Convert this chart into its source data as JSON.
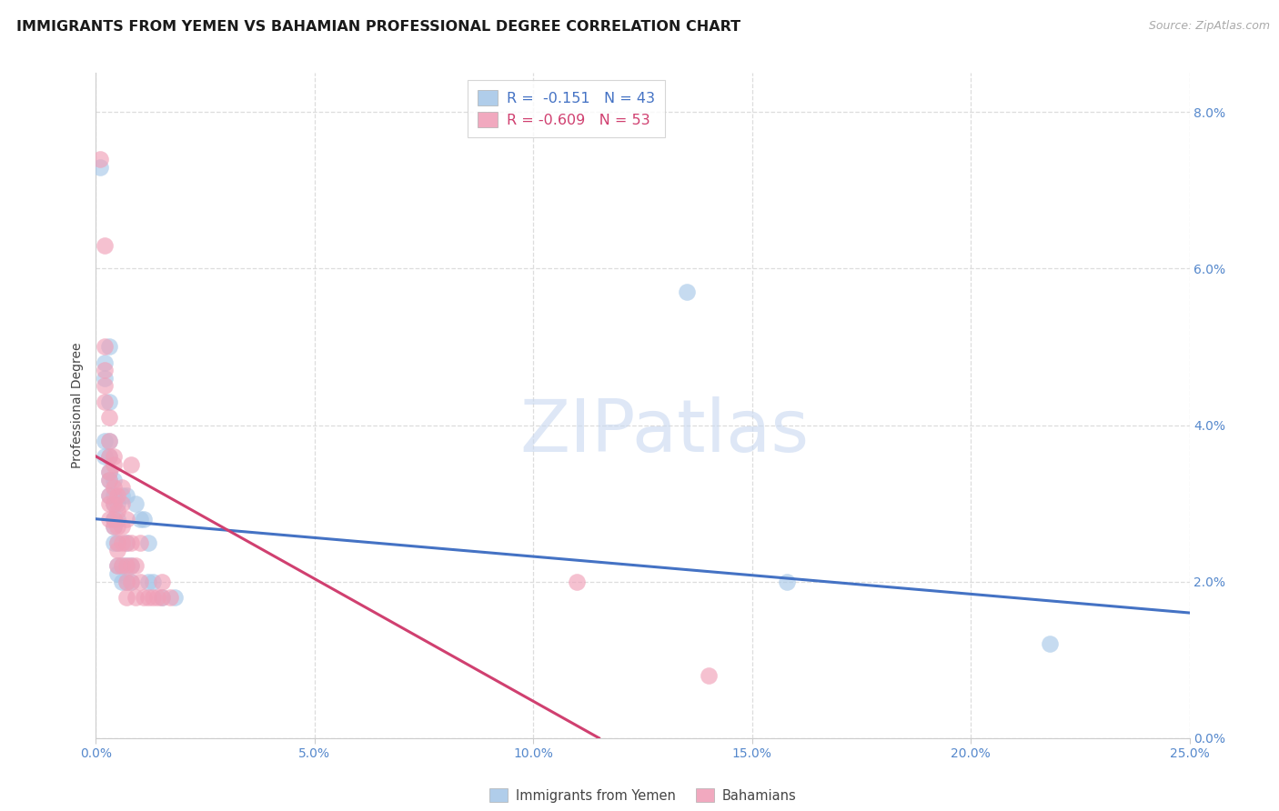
{
  "title": "IMMIGRANTS FROM YEMEN VS BAHAMIAN PROFESSIONAL DEGREE CORRELATION CHART",
  "source": "Source: ZipAtlas.com",
  "ylabel": "Professional Degree",
  "xmin": 0.0,
  "xmax": 0.25,
  "ymin": 0.0,
  "ymax": 0.085,
  "yticks": [
    0.0,
    0.02,
    0.04,
    0.06,
    0.08
  ],
  "xticks": [
    0.0,
    0.05,
    0.1,
    0.15,
    0.2,
    0.25
  ],
  "blue_color": "#A8C8E8",
  "pink_color": "#F0A0B8",
  "blue_line_color": "#4472C4",
  "pink_line_color": "#D04070",
  "series1_label": "Immigrants from Yemen",
  "series2_label": "Bahamians",
  "blue_R": "R =  -0.151",
  "blue_N": "N = 43",
  "pink_R": "R = -0.609",
  "pink_N": "N = 53",
  "blue_points": [
    [
      0.001,
      0.073
    ],
    [
      0.002,
      0.048
    ],
    [
      0.002,
      0.046
    ],
    [
      0.002,
      0.038
    ],
    [
      0.002,
      0.036
    ],
    [
      0.003,
      0.05
    ],
    [
      0.003,
      0.043
    ],
    [
      0.003,
      0.038
    ],
    [
      0.003,
      0.036
    ],
    [
      0.003,
      0.034
    ],
    [
      0.003,
      0.033
    ],
    [
      0.003,
      0.031
    ],
    [
      0.004,
      0.033
    ],
    [
      0.004,
      0.031
    ],
    [
      0.004,
      0.03
    ],
    [
      0.004,
      0.028
    ],
    [
      0.004,
      0.027
    ],
    [
      0.004,
      0.025
    ],
    [
      0.005,
      0.03
    ],
    [
      0.005,
      0.028
    ],
    [
      0.005,
      0.025
    ],
    [
      0.005,
      0.022
    ],
    [
      0.005,
      0.021
    ],
    [
      0.006,
      0.031
    ],
    [
      0.006,
      0.022
    ],
    [
      0.006,
      0.02
    ],
    [
      0.007,
      0.031
    ],
    [
      0.007,
      0.025
    ],
    [
      0.007,
      0.022
    ],
    [
      0.007,
      0.02
    ],
    [
      0.008,
      0.022
    ],
    [
      0.008,
      0.02
    ],
    [
      0.009,
      0.03
    ],
    [
      0.01,
      0.028
    ],
    [
      0.011,
      0.028
    ],
    [
      0.012,
      0.025
    ],
    [
      0.012,
      0.02
    ],
    [
      0.013,
      0.02
    ],
    [
      0.015,
      0.018
    ],
    [
      0.018,
      0.018
    ],
    [
      0.135,
      0.057
    ],
    [
      0.158,
      0.02
    ],
    [
      0.218,
      0.012
    ]
  ],
  "pink_points": [
    [
      0.001,
      0.074
    ],
    [
      0.002,
      0.063
    ],
    [
      0.002,
      0.05
    ],
    [
      0.002,
      0.047
    ],
    [
      0.002,
      0.045
    ],
    [
      0.002,
      0.043
    ],
    [
      0.003,
      0.041
    ],
    [
      0.003,
      0.038
    ],
    [
      0.003,
      0.036
    ],
    [
      0.003,
      0.034
    ],
    [
      0.003,
      0.033
    ],
    [
      0.003,
      0.031
    ],
    [
      0.003,
      0.03
    ],
    [
      0.003,
      0.028
    ],
    [
      0.004,
      0.036
    ],
    [
      0.004,
      0.035
    ],
    [
      0.004,
      0.032
    ],
    [
      0.004,
      0.03
    ],
    [
      0.004,
      0.028
    ],
    [
      0.004,
      0.027
    ],
    [
      0.005,
      0.031
    ],
    [
      0.005,
      0.029
    ],
    [
      0.005,
      0.027
    ],
    [
      0.005,
      0.025
    ],
    [
      0.005,
      0.024
    ],
    [
      0.005,
      0.022
    ],
    [
      0.006,
      0.032
    ],
    [
      0.006,
      0.03
    ],
    [
      0.006,
      0.027
    ],
    [
      0.006,
      0.025
    ],
    [
      0.006,
      0.022
    ],
    [
      0.007,
      0.028
    ],
    [
      0.007,
      0.025
    ],
    [
      0.007,
      0.022
    ],
    [
      0.007,
      0.02
    ],
    [
      0.007,
      0.018
    ],
    [
      0.008,
      0.035
    ],
    [
      0.008,
      0.025
    ],
    [
      0.008,
      0.022
    ],
    [
      0.008,
      0.02
    ],
    [
      0.009,
      0.022
    ],
    [
      0.009,
      0.018
    ],
    [
      0.01,
      0.025
    ],
    [
      0.01,
      0.02
    ],
    [
      0.011,
      0.018
    ],
    [
      0.012,
      0.018
    ],
    [
      0.013,
      0.018
    ],
    [
      0.014,
      0.018
    ],
    [
      0.015,
      0.02
    ],
    [
      0.015,
      0.018
    ],
    [
      0.017,
      0.018
    ],
    [
      0.11,
      0.02
    ],
    [
      0.14,
      0.008
    ]
  ],
  "blue_line_x": [
    0.0,
    0.25
  ],
  "blue_line_y": [
    0.028,
    0.016
  ],
  "pink_line_x": [
    0.0,
    0.115
  ],
  "pink_line_y": [
    0.036,
    0.0
  ],
  "grid_color": "#DDDDDD",
  "background_color": "#FFFFFF",
  "title_fontsize": 11.5,
  "tick_color": "#5588CC",
  "watermark_text": "ZIPatlas",
  "watermark_color": "#C8D8F0"
}
